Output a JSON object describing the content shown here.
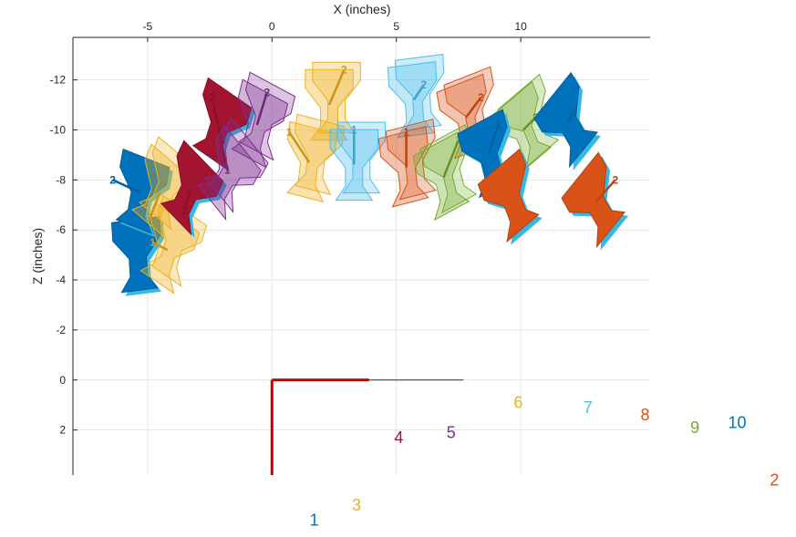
{
  "chart_data": {
    "type": "scatter",
    "title": "",
    "xlabel": "X (inches)",
    "ylabel": "Z (inches)",
    "xlim": [
      -8,
      15.2
    ],
    "ylim": [
      3.8,
      -13.7
    ],
    "y_reversed": true,
    "x_axis_location": "top",
    "grid": true,
    "x_ticks": [
      -5,
      0,
      5,
      10
    ],
    "y_ticks": [
      -12,
      -10,
      -8,
      -6,
      -4,
      -2,
      0,
      2
    ],
    "x_tick_labels": [
      "-5",
      "0",
      "5",
      "10"
    ],
    "y_tick_labels": [
      "-12",
      "-10",
      "-8",
      "-6",
      "-4",
      "-2",
      "0",
      "2"
    ],
    "origin_frame": {
      "x_axis_end": [
        3.9,
        0
      ],
      "z_axis_end": [
        0,
        3.8
      ],
      "grey_line_end": [
        7.7,
        0
      ]
    },
    "series": [
      {
        "name": "1",
        "color": "#0072bd",
        "x": 1.7,
        "y": 5.6
      },
      {
        "name": "2",
        "color": "#d95319",
        "x": 20.2,
        "y": 4.0
      },
      {
        "name": "3",
        "color": "#edb120",
        "x": 3.4,
        "y": 5.0
      },
      {
        "name": "4",
        "color": "#a2142f",
        "x": 5.1,
        "y": 2.3
      },
      {
        "name": "5",
        "color": "#7e2f8e",
        "x": 7.2,
        "y": 2.1
      },
      {
        "name": "6",
        "color": "#edb120",
        "x": 9.9,
        "y": 0.9
      },
      {
        "name": "7",
        "color": "#4dbeee",
        "x": 12.7,
        "y": 1.1
      },
      {
        "name": "8",
        "color": "#d95319",
        "x": 15.0,
        "y": 1.4
      },
      {
        "name": "9",
        "color": "#77ac30",
        "x": 17.0,
        "y": 1.9
      },
      {
        "name": "10",
        "color": "#0072bd",
        "x": 18.7,
        "y": 1.7
      }
    ],
    "poses": [
      {
        "color": "#0072bd",
        "cx": -5.4,
        "cy": -5.0,
        "ang": -5,
        "solid": true,
        "labels": []
      },
      {
        "color": "#0072bd",
        "cx": -5.3,
        "cy": -7.5,
        "ang": 15,
        "solid": true,
        "labels": [
          {
            "t": "2",
            "x": -6.4,
            "y": -8.0
          }
        ]
      },
      {
        "color": "#edb120",
        "cx": -4.2,
        "cy": -5.2,
        "ang": 25,
        "solid": false,
        "labels": [
          {
            "t": "1",
            "x": -4.8,
            "y": -5.5
          }
        ]
      },
      {
        "color": "#edb120",
        "cx": -4.5,
        "cy": -7.5,
        "ang": 30,
        "solid": false,
        "labels": [
          {
            "t": "2",
            "x": -4.9,
            "y": -6.5
          }
        ]
      },
      {
        "color": "#a2142f",
        "cx": -3.3,
        "cy": -7.6,
        "ang": 35,
        "solid": true,
        "labels": [
          {
            "t": "2",
            "x": -3.5,
            "y": -6.8
          }
        ]
      },
      {
        "color": "#a2142f",
        "cx": -2.1,
        "cy": -10.2,
        "ang": 25,
        "solid": true,
        "labels": [
          {
            "t": "1",
            "x": -1.8,
            "y": -8.4
          },
          {
            "t": "2",
            "x": -2.4,
            "y": -11.3
          }
        ]
      },
      {
        "color": "#7e2f8e",
        "cx": -1.8,
        "cy": -8.2,
        "ang": 40,
        "solid": false,
        "labels": []
      },
      {
        "color": "#7e2f8e",
        "cx": -0.6,
        "cy": -10.2,
        "ang": 20,
        "solid": false,
        "labels": [
          {
            "t": "2",
            "x": -0.2,
            "y": -11.5
          }
        ]
      },
      {
        "color": "#edb120",
        "cx": 1.5,
        "cy": -8.7,
        "ang": 10,
        "solid": false,
        "labels": [
          {
            "t": "1",
            "x": 0.7,
            "y": -9.9
          }
        ]
      },
      {
        "color": "#edb120",
        "cx": 2.3,
        "cy": -11.0,
        "ang": 0,
        "solid": false,
        "labels": [
          {
            "t": "2",
            "x": 2.9,
            "y": -12.4
          }
        ]
      },
      {
        "color": "#4dbeee",
        "cx": 3.3,
        "cy": -8.6,
        "ang": 0,
        "solid": false,
        "labels": [
          {
            "t": "1",
            "x": 3.3,
            "y": -10.0
          }
        ]
      },
      {
        "color": "#4dbeee",
        "cx": 5.7,
        "cy": -11.2,
        "ang": -5,
        "solid": false,
        "labels": [
          {
            "t": "2",
            "x": 6.1,
            "y": -11.8
          }
        ]
      },
      {
        "color": "#d95319",
        "cx": 5.4,
        "cy": -8.5,
        "ang": -10,
        "solid": false,
        "labels": [
          {
            "t": "1",
            "x": 5.4,
            "y": -9.9
          }
        ]
      },
      {
        "color": "#d95319",
        "cx": 7.8,
        "cy": -10.5,
        "ang": -15,
        "solid": false,
        "labels": [
          {
            "t": "2",
            "x": 8.4,
            "y": -11.3
          }
        ]
      },
      {
        "color": "#77ac30",
        "cx": 6.9,
        "cy": -8.1,
        "ang": -20,
        "solid": false,
        "labels": [
          {
            "t": "1",
            "x": 7.5,
            "y": -9.6
          }
        ]
      },
      {
        "color": "#77ac30",
        "cx": 10.1,
        "cy": -10.0,
        "ang": -30,
        "solid": false,
        "labels": [
          {
            "t": "2",
            "x": 10.6,
            "y": -10.5
          }
        ]
      },
      {
        "color": "#0072bd",
        "cx": 8.7,
        "cy": -9.0,
        "ang": -20,
        "solid": true,
        "labels": [
          {
            "t": "1",
            "x": 9.1,
            "y": -10.2
          }
        ]
      },
      {
        "color": "#0072bd",
        "cx": 11.9,
        "cy": -10.3,
        "ang": -40,
        "solid": true,
        "labels": [
          {
            "t": "2",
            "x": 12.1,
            "y": -10.7
          }
        ]
      },
      {
        "color": "#d95319",
        "cx": 9.6,
        "cy": -7.3,
        "ang": -30,
        "solid": true,
        "labels": []
      },
      {
        "color": "#d95319",
        "cx": 13.0,
        "cy": -7.1,
        "ang": -40,
        "solid": true,
        "labels": [
          {
            "t": "2",
            "x": 13.8,
            "y": -8.0
          }
        ]
      }
    ]
  }
}
